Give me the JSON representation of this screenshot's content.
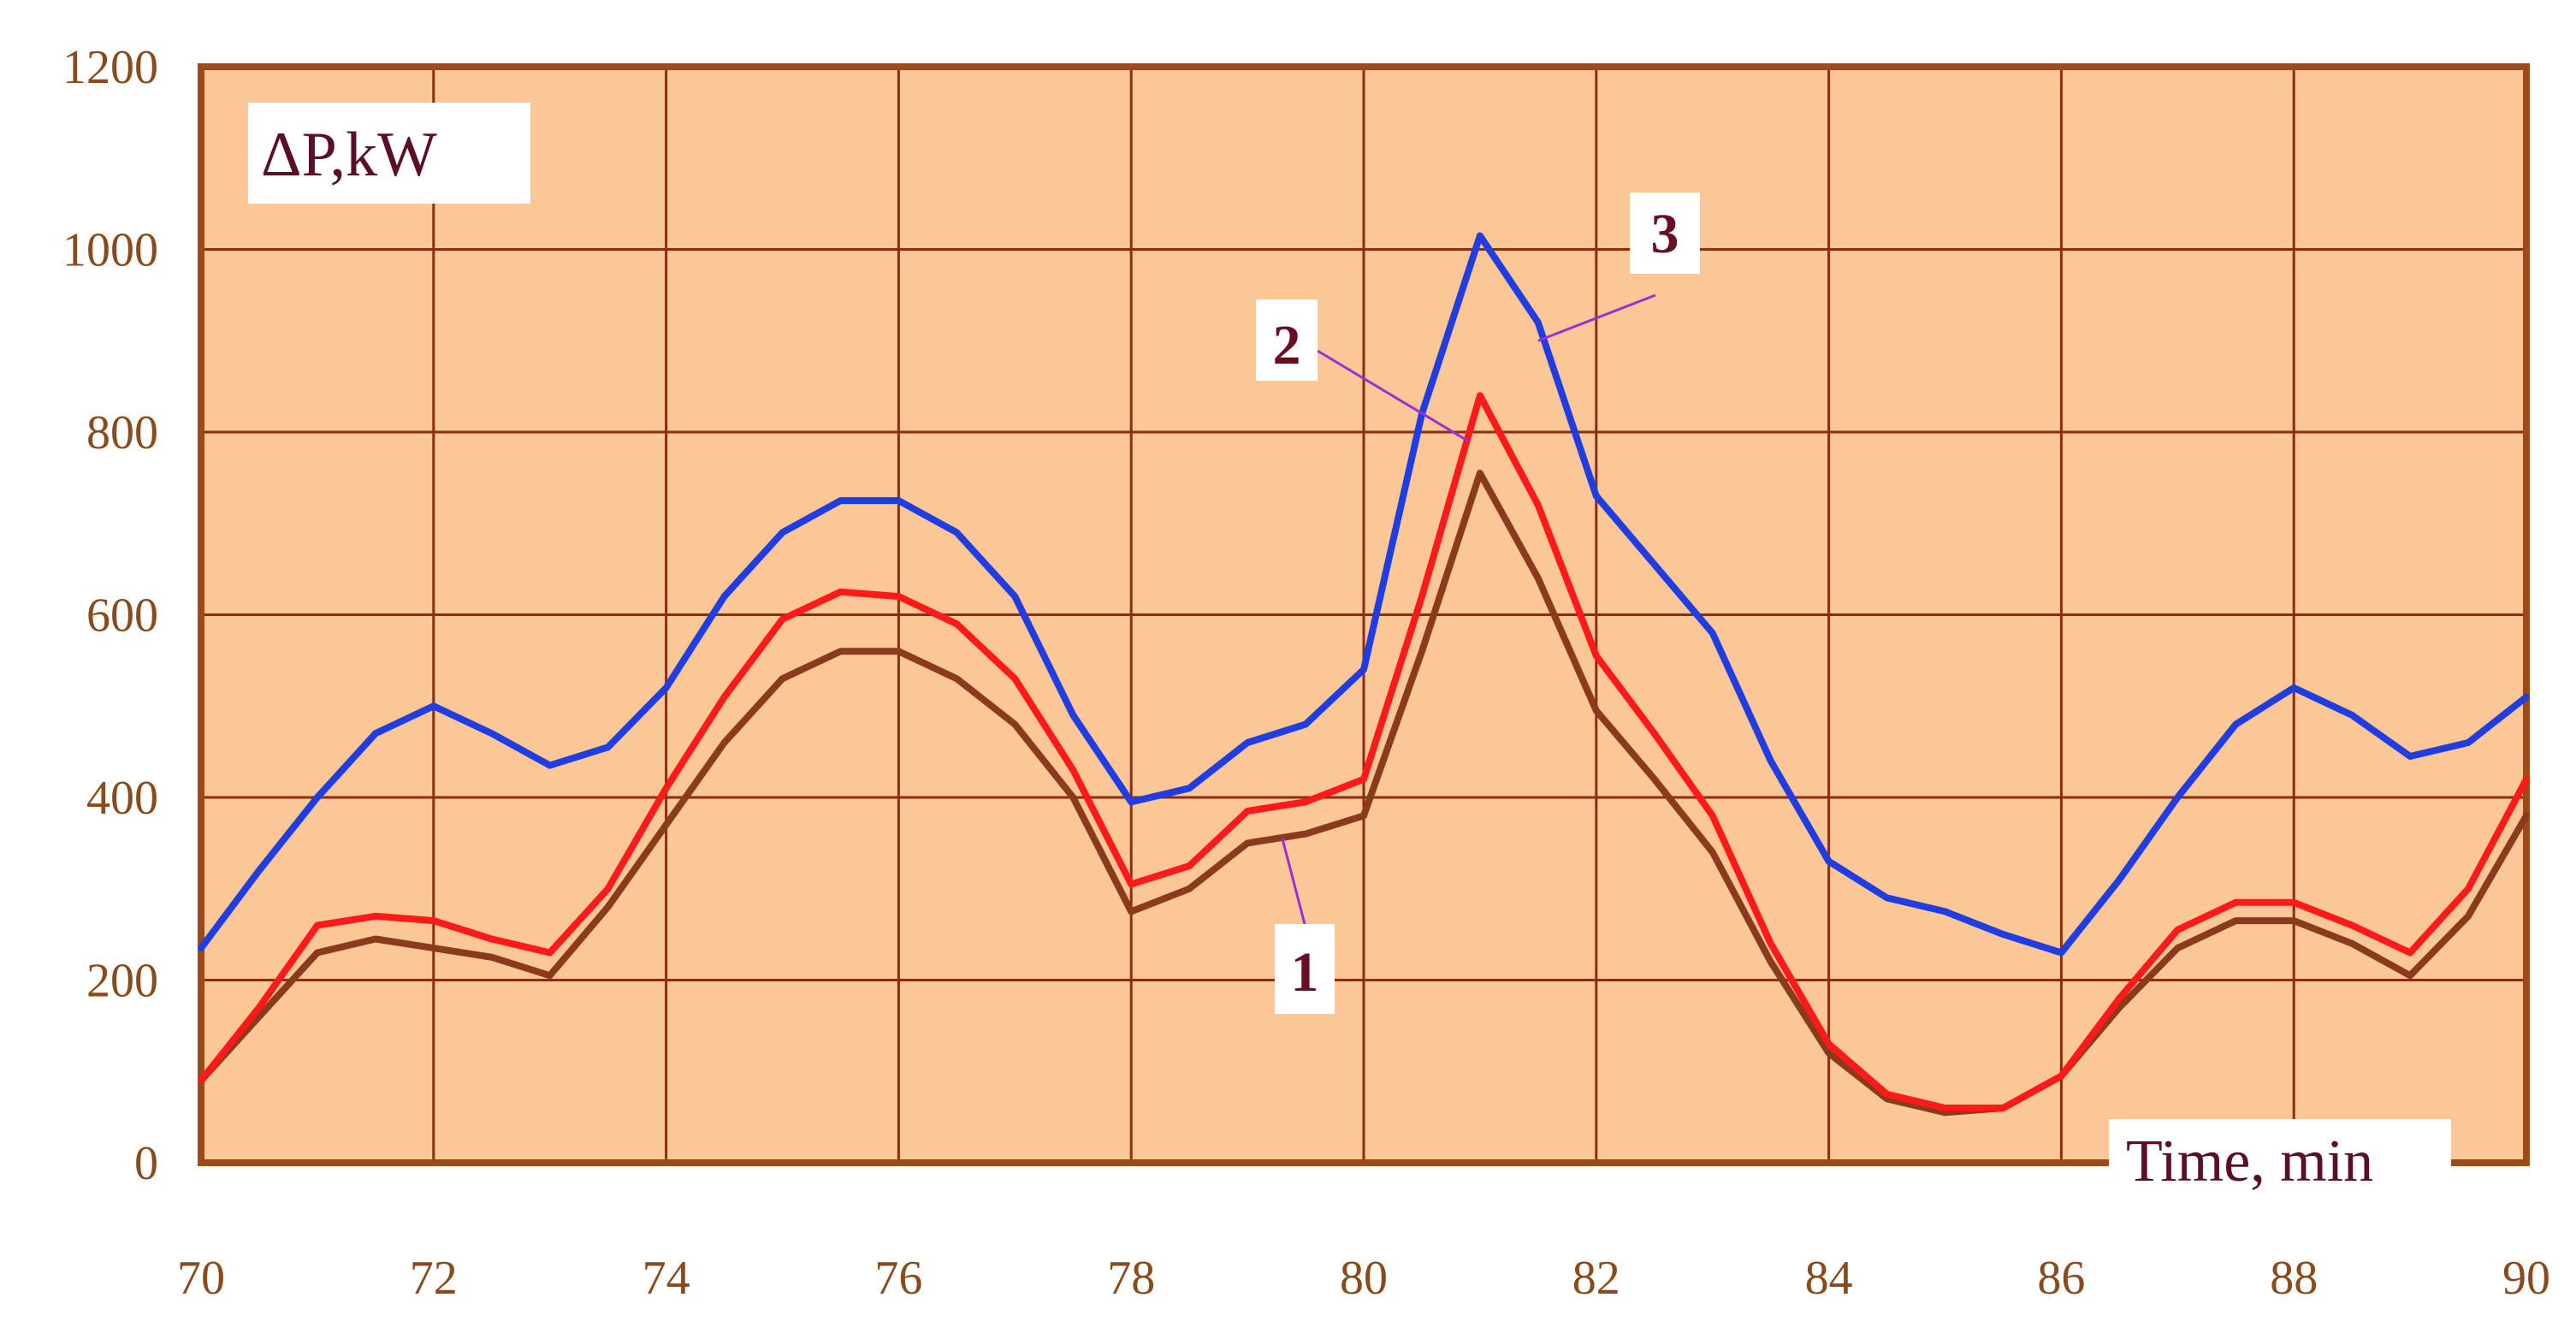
{
  "chart_data": {
    "type": "line",
    "ylabel": "ΔP,kW",
    "xlabel": "Time, min",
    "xlim": [
      70,
      90
    ],
    "ylim": [
      0,
      1200
    ],
    "x_ticks": [
      "70",
      "72",
      "74",
      "76",
      "78",
      "80",
      "82",
      "84",
      "86",
      "88",
      "90"
    ],
    "y_ticks": [
      "0",
      "200",
      "400",
      "600",
      "800",
      "1000",
      "1200"
    ],
    "grid": true,
    "colors": {
      "plot_background": "#fbc797",
      "grid": "#8b2d10",
      "border": "#9c4a1a",
      "tick_text": "#8a4a1c",
      "annotation_text": "#5a0f22",
      "pointer_line": "#9b30d0"
    },
    "series": [
      {
        "label": "1",
        "color": "#8a3b1c",
        "points": [
          [
            70,
            90
          ],
          [
            70.5,
            160
          ],
          [
            71,
            230
          ],
          [
            71.5,
            245
          ],
          [
            72,
            235
          ],
          [
            72.5,
            225
          ],
          [
            73,
            205
          ],
          [
            73.5,
            280
          ],
          [
            74,
            370
          ],
          [
            74.5,
            460
          ],
          [
            75,
            530
          ],
          [
            75.5,
            560
          ],
          [
            76,
            560
          ],
          [
            76.5,
            530
          ],
          [
            77,
            480
          ],
          [
            77.5,
            400
          ],
          [
            78,
            275
          ],
          [
            78.5,
            300
          ],
          [
            79,
            350
          ],
          [
            79.5,
            360
          ],
          [
            80,
            380
          ],
          [
            80.5,
            560
          ],
          [
            81,
            755
          ],
          [
            81.5,
            640
          ],
          [
            82,
            495
          ],
          [
            82.5,
            420
          ],
          [
            83,
            340
          ],
          [
            83.5,
            220
          ],
          [
            84,
            120
          ],
          [
            84.5,
            70
          ],
          [
            85,
            55
          ],
          [
            85.5,
            60
          ],
          [
            86,
            95
          ],
          [
            86.5,
            170
          ],
          [
            87,
            235
          ],
          [
            87.5,
            265
          ],
          [
            88,
            265
          ],
          [
            88.5,
            240
          ],
          [
            89,
            205
          ],
          [
            89.5,
            270
          ],
          [
            90,
            380
          ]
        ]
      },
      {
        "label": "2",
        "color": "#ff1a1a",
        "points": [
          [
            70,
            90
          ],
          [
            70.5,
            170
          ],
          [
            71,
            260
          ],
          [
            71.5,
            270
          ],
          [
            72,
            265
          ],
          [
            72.5,
            245
          ],
          [
            73,
            230
          ],
          [
            73.5,
            300
          ],
          [
            74,
            410
          ],
          [
            74.5,
            510
          ],
          [
            75,
            595
          ],
          [
            75.5,
            625
          ],
          [
            76,
            620
          ],
          [
            76.5,
            590
          ],
          [
            77,
            530
          ],
          [
            77.5,
            430
          ],
          [
            78,
            305
          ],
          [
            78.5,
            325
          ],
          [
            79,
            385
          ],
          [
            79.5,
            395
          ],
          [
            80,
            420
          ],
          [
            80.5,
            620
          ],
          [
            81,
            840
          ],
          [
            81.5,
            720
          ],
          [
            82,
            555
          ],
          [
            82.5,
            470
          ],
          [
            83,
            380
          ],
          [
            83.5,
            240
          ],
          [
            84,
            130
          ],
          [
            84.5,
            75
          ],
          [
            85,
            60
          ],
          [
            85.5,
            60
          ],
          [
            86,
            95
          ],
          [
            86.5,
            180
          ],
          [
            87,
            255
          ],
          [
            87.5,
            285
          ],
          [
            88,
            285
          ],
          [
            88.5,
            260
          ],
          [
            89,
            230
          ],
          [
            89.5,
            300
          ],
          [
            90,
            420
          ]
        ]
      },
      {
        "label": "3",
        "color": "#1f3de0",
        "points": [
          [
            70,
            235
          ],
          [
            70.5,
            320
          ],
          [
            71,
            400
          ],
          [
            71.5,
            470
          ],
          [
            72,
            500
          ],
          [
            72.5,
            470
          ],
          [
            73,
            435
          ],
          [
            73.5,
            455
          ],
          [
            74,
            520
          ],
          [
            74.5,
            620
          ],
          [
            75,
            690
          ],
          [
            75.5,
            725
          ],
          [
            76,
            725
          ],
          [
            76.5,
            690
          ],
          [
            77,
            620
          ],
          [
            77.5,
            490
          ],
          [
            78,
            395
          ],
          [
            78.5,
            410
          ],
          [
            79,
            460
          ],
          [
            79.5,
            480
          ],
          [
            80,
            540
          ],
          [
            80.5,
            820
          ],
          [
            81,
            1015
          ],
          [
            81.5,
            920
          ],
          [
            82,
            730
          ],
          [
            82.5,
            655
          ],
          [
            83,
            580
          ],
          [
            83.5,
            440
          ],
          [
            84,
            330
          ],
          [
            84.5,
            290
          ],
          [
            85,
            275
          ],
          [
            85.5,
            250
          ],
          [
            86,
            230
          ],
          [
            86.5,
            310
          ],
          [
            87,
            400
          ],
          [
            87.5,
            480
          ],
          [
            88,
            520
          ],
          [
            88.5,
            490
          ],
          [
            89,
            445
          ],
          [
            89.5,
            460
          ],
          [
            90,
            510
          ]
        ]
      }
    ],
    "annotations": [
      {
        "text": "1",
        "target_series": "1",
        "at": [
          79.3,
          355
        ]
      },
      {
        "text": "2",
        "target_series": "2",
        "at": [
          80.9,
          790
        ]
      },
      {
        "text": "3",
        "target_series": "3",
        "at": [
          81.5,
          900
        ]
      }
    ]
  }
}
